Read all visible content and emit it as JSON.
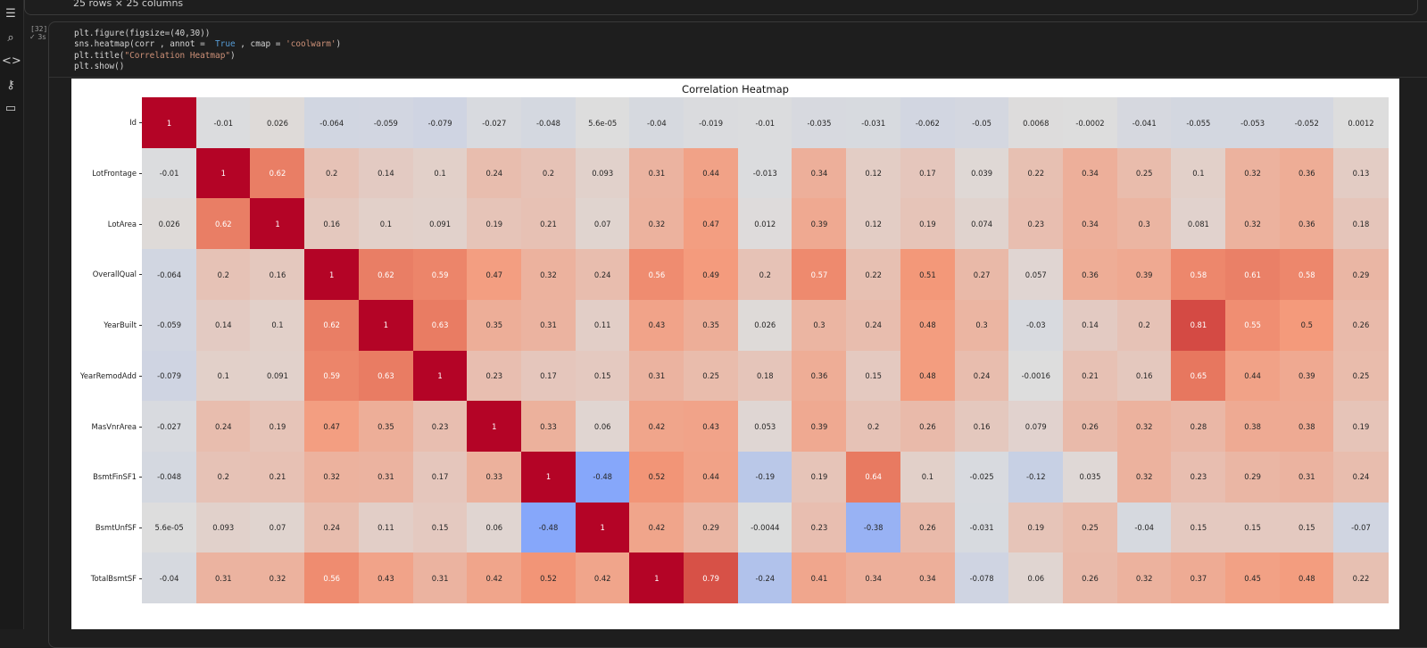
{
  "sidebar": {
    "icons": [
      "table-of-contents-icon",
      "find-replace-icon",
      "code-snippets-icon",
      "secrets-key-icon",
      "files-folder-icon"
    ]
  },
  "previous_output": {
    "text": "25 rows × 25 columns"
  },
  "cell": {
    "execution_count": "[32]",
    "execution_time": "3s",
    "code_lines": [
      "plt.figure(figsize=(40,30))",
      "sns.heatmap(corr , annot =  True , cmap = 'coolwarm')",
      "plt.title(\"Correlation Heatmap\")",
      "plt.show()"
    ]
  },
  "chart_data": {
    "type": "heatmap",
    "title": "Correlation Heatmap",
    "colormap": "coolwarm",
    "value_range": [
      -1,
      1
    ],
    "row_labels": [
      "Id",
      "LotFrontage",
      "LotArea",
      "OverallQual",
      "YearBuilt",
      "YearRemodAdd",
      "MasVnrArea",
      "BsmtFinSF1",
      "BsmtUnfSF",
      "TotalBsmtSF"
    ],
    "values": [
      [
        "1",
        "-0.01",
        "0.026",
        "-0.064",
        "-0.059",
        "-0.079",
        "-0.027",
        "-0.048",
        "5.6e-05",
        "-0.04",
        "-0.019",
        "-0.01",
        "-0.035",
        "-0.031",
        "-0.062",
        "-0.05",
        "0.0068",
        "-0.0002",
        "-0.041",
        "-0.055",
        "-0.053",
        "-0.052",
        "0.0012"
      ],
      [
        "-0.01",
        "1",
        "0.62",
        "0.2",
        "0.14",
        "0.1",
        "0.24",
        "0.2",
        "0.093",
        "0.31",
        "0.44",
        "-0.013",
        "0.34",
        "0.12",
        "0.17",
        "0.039",
        "0.22",
        "0.34",
        "0.25",
        "0.1",
        "0.32",
        "0.36",
        "0.13"
      ],
      [
        "0.026",
        "0.62",
        "1",
        "0.16",
        "0.1",
        "0.091",
        "0.19",
        "0.21",
        "0.07",
        "0.32",
        "0.47",
        "0.012",
        "0.39",
        "0.12",
        "0.19",
        "0.074",
        "0.23",
        "0.34",
        "0.3",
        "0.081",
        "0.32",
        "0.36",
        "0.18"
      ],
      [
        "-0.064",
        "0.2",
        "0.16",
        "1",
        "0.62",
        "0.59",
        "0.47",
        "0.32",
        "0.24",
        "0.56",
        "0.49",
        "0.2",
        "0.57",
        "0.22",
        "0.51",
        "0.27",
        "0.057",
        "0.36",
        "0.39",
        "0.58",
        "0.61",
        "0.58",
        "0.29"
      ],
      [
        "-0.059",
        "0.14",
        "0.1",
        "0.62",
        "1",
        "0.63",
        "0.35",
        "0.31",
        "0.11",
        "0.43",
        "0.35",
        "0.026",
        "0.3",
        "0.24",
        "0.48",
        "0.3",
        "-0.03",
        "0.14",
        "0.2",
        "0.81",
        "0.55",
        "0.5",
        "0.26"
      ],
      [
        "-0.079",
        "0.1",
        "0.091",
        "0.59",
        "0.63",
        "1",
        "0.23",
        "0.17",
        "0.15",
        "0.31",
        "0.25",
        "0.18",
        "0.36",
        "0.15",
        "0.48",
        "0.24",
        "-0.0016",
        "0.21",
        "0.16",
        "0.65",
        "0.44",
        "0.39",
        "0.25"
      ],
      [
        "-0.027",
        "0.24",
        "0.19",
        "0.47",
        "0.35",
        "0.23",
        "1",
        "0.33",
        "0.06",
        "0.42",
        "0.43",
        "0.053",
        "0.39",
        "0.2",
        "0.26",
        "0.16",
        "0.079",
        "0.26",
        "0.32",
        "0.28",
        "0.38",
        "0.38",
        "0.19"
      ],
      [
        "-0.048",
        "0.2",
        "0.21",
        "0.32",
        "0.31",
        "0.17",
        "0.33",
        "1",
        "-0.48",
        "0.52",
        "0.44",
        "-0.19",
        "0.19",
        "0.64",
        "0.1",
        "-0.025",
        "-0.12",
        "0.035",
        "0.32",
        "0.23",
        "0.29",
        "0.31",
        "0.24"
      ],
      [
        "5.6e-05",
        "0.093",
        "0.07",
        "0.24",
        "0.11",
        "0.15",
        "0.06",
        "-0.48",
        "1",
        "0.42",
        "0.29",
        "-0.0044",
        "0.23",
        "-0.38",
        "0.26",
        "-0.031",
        "0.19",
        "0.25",
        "-0.04",
        "0.15",
        "0.15",
        "0.15",
        "-0.07"
      ],
      [
        "-0.04",
        "0.31",
        "0.32",
        "0.56",
        "0.43",
        "0.31",
        "0.42",
        "0.52",
        "0.42",
        "1",
        "0.79",
        "-0.24",
        "0.41",
        "0.34",
        "0.34",
        "-0.078",
        "0.06",
        "0.26",
        "0.32",
        "0.37",
        "0.45",
        "0.48",
        "0.22"
      ]
    ]
  }
}
